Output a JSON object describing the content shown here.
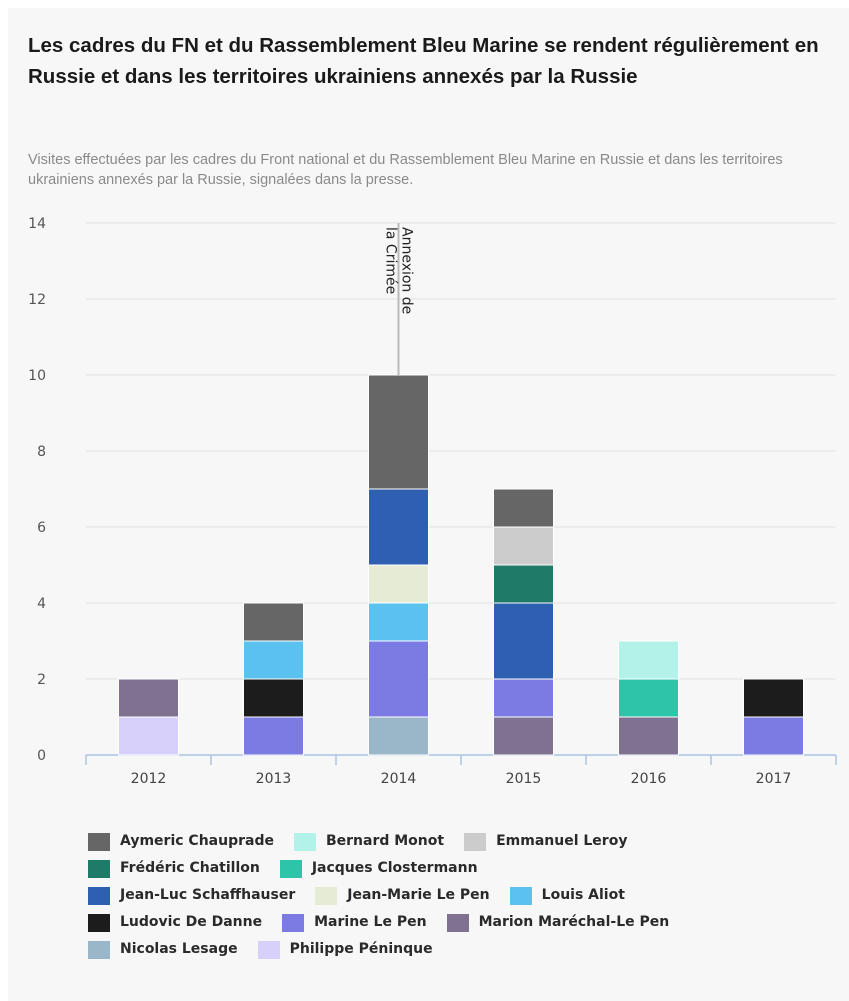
{
  "header": {
    "title": "Les cadres du FN et du Rassemblement Bleu Marine se rendent régulièrement en Russie et dans les territoires ukrainiens annexés par la Russie",
    "subtitle": "Visites effectuées par les cadres du Front national et du Rassemblement Bleu Marine en Russie et dans les territoires ukrainiens annexés par la Russie, signalées dans la presse."
  },
  "chart_data": {
    "type": "bar",
    "stacked": true,
    "title": "Les cadres du FN et du Rassemblement Bleu Marine se rendent régulièrement en Russie et dans les territoires ukrainiens annexés par la Russie",
    "subtitle": "Visites effectuées par les cadres du Front national et du Rassemblement Bleu Marine en Russie et dans les territoires ukrainiens annexés par la Russie, signalées dans la presse.",
    "categories": [
      "2012",
      "2013",
      "2014",
      "2015",
      "2016",
      "2017"
    ],
    "ylim": [
      0,
      14
    ],
    "yticks": [
      "0",
      "2",
      "4",
      "6",
      "8",
      "10",
      "12",
      "14"
    ],
    "grid": true,
    "legend_position": "bottom",
    "annotation": {
      "text": "Annexion de la Crimée",
      "category": "2014",
      "lines": [
        "Annexion de",
        "la Crimée"
      ]
    },
    "series": [
      {
        "name": "Aymeric Chauprade",
        "color": "#666666",
        "values": [
          0,
          1,
          3,
          1,
          0,
          0
        ]
      },
      {
        "name": "Bernard Monot",
        "color": "#b3f2e8",
        "values": [
          0,
          0,
          0,
          0,
          1,
          0
        ]
      },
      {
        "name": "Emmanuel Leroy",
        "color": "#cccccc",
        "values": [
          0,
          0,
          0,
          1,
          0,
          0
        ]
      },
      {
        "name": "Frédéric Chatillon",
        "color": "#207a68",
        "values": [
          0,
          0,
          0,
          1,
          0,
          0
        ]
      },
      {
        "name": "Jacques Clostermann",
        "color": "#2ec4a9",
        "values": [
          0,
          0,
          0,
          0,
          1,
          0
        ]
      },
      {
        "name": "Jean-Luc Schaffhauser",
        "color": "#2e5fb0",
        "values": [
          0,
          0,
          2,
          2,
          0,
          0
        ]
      },
      {
        "name": "Jean-Marie Le Pen",
        "color": "#e6ebd5",
        "values": [
          0,
          0,
          1,
          0,
          0,
          0
        ]
      },
      {
        "name": "Louis Aliot",
        "color": "#5bc2f0",
        "values": [
          0,
          1,
          1,
          0,
          0,
          0
        ]
      },
      {
        "name": "Ludovic De Danne",
        "color": "#1c1c1c",
        "values": [
          0,
          1,
          0,
          0,
          0,
          1
        ]
      },
      {
        "name": "Marine Le Pen",
        "color": "#7b7be3",
        "values": [
          0,
          1,
          2,
          1,
          0,
          1
        ]
      },
      {
        "name": "Marion Maréchal-Le Pen",
        "color": "#7f7290",
        "values": [
          1,
          0,
          0,
          1,
          1,
          0
        ]
      },
      {
        "name": "Nicolas Lesage",
        "color": "#9ab7c9",
        "values": [
          0,
          0,
          1,
          0,
          0,
          0
        ]
      },
      {
        "name": "Philippe Péninque",
        "color": "#d6d0fb",
        "values": [
          1,
          0,
          0,
          0,
          0,
          0
        ]
      }
    ],
    "stack_order": [
      "Philippe Péninque",
      "Nicolas Lesage",
      "Marion Maréchal-Le Pen",
      "Marine Le Pen",
      "Ludovic De Danne",
      "Louis Aliot",
      "Jean-Marie Le Pen",
      "Jean-Luc Schaffhauser",
      "Jacques Clostermann",
      "Frédéric Chatillon",
      "Emmanuel Leroy",
      "Bernard Monot",
      "Aymeric Chauprade"
    ]
  },
  "legend": {
    "rows": [
      [
        "Aymeric Chauprade",
        "Bernard Monot",
        "Emmanuel Leroy"
      ],
      [
        "Frédéric Chatillon",
        "Jacques Clostermann"
      ],
      [
        "Jean-Luc Schaffhauser",
        "Jean-Marie Le Pen",
        "Louis Aliot"
      ],
      [
        "Ludovic De Danne",
        "Marine Le Pen",
        "Marion Maréchal-Le Pen"
      ],
      [
        "Nicolas Lesage",
        "Philippe Péninque"
      ]
    ]
  }
}
